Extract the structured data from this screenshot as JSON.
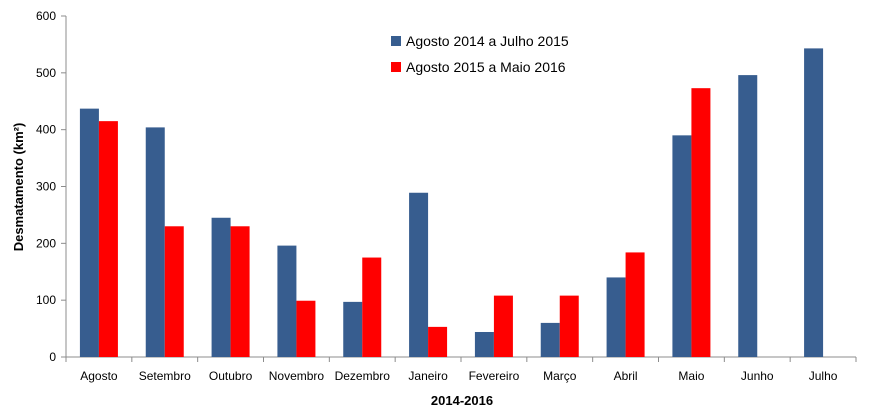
{
  "chart_data": {
    "type": "bar",
    "title": "",
    "xlabel": "2014-2016",
    "ylabel": "Desmatamento (km²)",
    "ylim": [
      0,
      600
    ],
    "yticks": [
      0,
      100,
      200,
      300,
      400,
      500,
      600
    ],
    "grid": false,
    "legend_position": "top-center",
    "categories": [
      "Agosto",
      "Setembro",
      "Outubro",
      "Novembro",
      "Dezembro",
      "Janeiro",
      "Fevereiro",
      "Março",
      "Abril",
      "Maio",
      "Junho",
      "Julho"
    ],
    "series": [
      {
        "name": "Agosto 2014 a Julho 2015",
        "color": "#375d8f",
        "values": [
          437,
          404,
          245,
          196,
          97,
          289,
          44,
          60,
          140,
          390,
          496,
          543
        ]
      },
      {
        "name": "Agosto 2015 a Maio 2016",
        "color": "#ff0000",
        "values": [
          415,
          230,
          230,
          99,
          175,
          53,
          108,
          108,
          184,
          473,
          null,
          null
        ]
      }
    ]
  }
}
